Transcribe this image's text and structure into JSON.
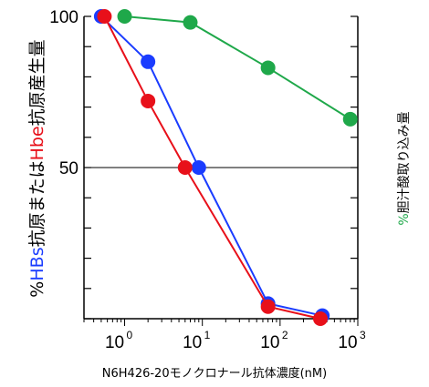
{
  "chart_data": {
    "type": "line",
    "xscale": "log",
    "xlim": [
      0.3,
      1000
    ],
    "ylim": [
      0,
      100
    ],
    "x_ticks": [
      {
        "base": "10",
        "exp": "0",
        "value": 1
      },
      {
        "base": "10",
        "exp": "1",
        "value": 10
      },
      {
        "base": "10",
        "exp": "2",
        "value": 100
      },
      {
        "base": "10",
        "exp": "3",
        "value": 1000
      }
    ],
    "y_tick_labels": [
      {
        "text": "100",
        "value": 100
      },
      {
        "text": "50",
        "value": 50
      }
    ],
    "y_minor_ticks": [
      0,
      10,
      20,
      30,
      40,
      50,
      60,
      70,
      80,
      90,
      100
    ],
    "reference_line": 50,
    "xlabel": "N6H426-20モノクロナール抗体濃度(nM)",
    "ylabel_parts": [
      {
        "text": "%",
        "color": "#000000"
      },
      {
        "text": "HBs",
        "color": "#1a3cff"
      },
      {
        "text": "抗原または",
        "color": "#000000"
      },
      {
        "text": "Hbe",
        "color": "#e8101a"
      },
      {
        "text": "抗原産生量",
        "color": "#000000"
      }
    ],
    "y2label_parts": [
      {
        "text": "%",
        "color": "#1fa84a"
      },
      {
        "text": "胆汁酸取り込み量",
        "color": "#000000"
      }
    ],
    "series": [
      {
        "color": "#1fa84a",
        "x": [
          1,
          7,
          70,
          800
        ],
        "y": [
          100,
          98,
          83,
          66
        ]
      },
      {
        "color": "#1a3cff",
        "x": [
          0.5,
          2,
          9,
          70,
          350
        ],
        "y": [
          100,
          85,
          50,
          5,
          1
        ]
      },
      {
        "color": "#e8101a",
        "x": [
          0.55,
          2,
          6,
          70,
          330
        ],
        "y": [
          100,
          72,
          50,
          4,
          0
        ]
      }
    ],
    "grid": false
  }
}
